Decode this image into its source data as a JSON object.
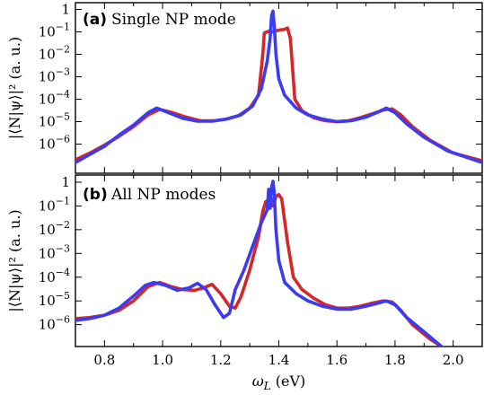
{
  "chart_data": [
    {
      "type": "line",
      "panel_tag": "(a)",
      "title": "Single NP mode",
      "ylabel": "|⟨N|ψ⟩|²  (a. u.)",
      "xlabel": "",
      "xlim": [
        0.7,
        2.1
      ],
      "ylim": [
        5e-08,
        2
      ],
      "yscale": "log",
      "yticks": [
        1,
        0.1,
        0.01,
        0.001,
        0.0001,
        1e-05,
        1e-06
      ],
      "yticklabels": [
        "1",
        "10^-1",
        "10^-2",
        "10^-3",
        "10^-4",
        "10^-5",
        "10^-6"
      ],
      "series": [
        {
          "color": "#d62728",
          "x": [
            0.7,
            0.75,
            0.8,
            0.85,
            0.9,
            0.95,
            0.99,
            1.03,
            1.08,
            1.13,
            1.18,
            1.22,
            1.26,
            1.3,
            1.33,
            1.345,
            1.35,
            1.36,
            1.37,
            1.38,
            1.39,
            1.4,
            1.42,
            1.43,
            1.44,
            1.455,
            1.48,
            1.52,
            1.56,
            1.6,
            1.64,
            1.68,
            1.72,
            1.76,
            1.79,
            1.82,
            1.86,
            1.92,
            2.0,
            2.1
          ],
          "y": [
            2e-07,
            4e-07,
            9e-07,
            2.2e-06,
            6e-06,
            2e-05,
            3.5e-05,
            2.6e-05,
            1.6e-05,
            1.1e-05,
            1.1e-05,
            1.3e-05,
            1.8e-05,
            4e-05,
            0.00015,
            0.01,
            0.09,
            0.1,
            0.11,
            0.1,
            0.11,
            0.12,
            0.13,
            0.15,
            0.05,
            0.0001,
            3e-05,
            1.5e-05,
            1.1e-05,
            1e-05,
            1.1e-05,
            1.5e-05,
            2.2e-05,
            3.3e-05,
            3.7e-05,
            2e-05,
            6e-06,
            1.5e-06,
            4e-07,
            1.8e-07
          ]
        },
        {
          "color": "#3b3bf0",
          "x": [
            0.7,
            0.75,
            0.8,
            0.85,
            0.9,
            0.95,
            0.98,
            1.02,
            1.07,
            1.12,
            1.17,
            1.22,
            1.27,
            1.31,
            1.34,
            1.36,
            1.37,
            1.375,
            1.38,
            1.385,
            1.39,
            1.4,
            1.42,
            1.46,
            1.5,
            1.55,
            1.6,
            1.65,
            1.7,
            1.74,
            1.77,
            1.8,
            1.84,
            1.9,
            1.98,
            2.1
          ],
          "y": [
            1.5e-07,
            3.5e-07,
            8e-07,
            2.5e-06,
            7e-06,
            2.5e-05,
            4e-05,
            2.5e-05,
            1.4e-05,
            1.05e-05,
            1.05e-05,
            1.3e-05,
            2e-05,
            5e-05,
            0.0003,
            0.005,
            0.05,
            0.5,
            0.85,
            0.15,
            0.01,
            0.0008,
            0.00015,
            4e-05,
            2e-05,
            1.3e-05,
            1e-05,
            1.1e-05,
            1.6e-05,
            2.6e-05,
            4e-05,
            2.5e-05,
            8e-06,
            2e-06,
            5e-07,
            1.5e-07
          ]
        }
      ]
    },
    {
      "type": "line",
      "panel_tag": "(b)",
      "title": "All NP modes",
      "ylabel": "|⟨N|ψ⟩|²  (a. u.)",
      "xlabel": "ω_L (eV)",
      "xlim": [
        0.7,
        2.1
      ],
      "ylim": [
        1.2e-07,
        2
      ],
      "yscale": "log",
      "xticks": [
        0.8,
        1.0,
        1.2,
        1.4,
        1.6,
        1.8,
        2.0
      ],
      "xticklabels": [
        "0.8",
        "1.0",
        "1.2",
        "1.4",
        "1.6",
        "1.8",
        "2.0"
      ],
      "yticks": [
        1,
        0.1,
        0.01,
        0.001,
        0.0001,
        1e-05,
        1e-06
      ],
      "yticklabels": [
        "1",
        "10^-1",
        "10^-2",
        "10^-3",
        "10^-4",
        "10^-5",
        "10^-6"
      ],
      "series": [
        {
          "color": "#d62728",
          "x": [
            0.7,
            0.75,
            0.8,
            0.85,
            0.9,
            0.95,
            0.99,
            1.03,
            1.07,
            1.11,
            1.14,
            1.17,
            1.2,
            1.23,
            1.25,
            1.27,
            1.3,
            1.33,
            1.345,
            1.355,
            1.365,
            1.375,
            1.38,
            1.39,
            1.4,
            1.41,
            1.43,
            1.45,
            1.48,
            1.52,
            1.56,
            1.6,
            1.64,
            1.68,
            1.72,
            1.76,
            1.79,
            1.82,
            1.86,
            1.92,
            1.97,
            2.1
          ],
          "y": [
            1.8e-06,
            2e-06,
            2.5e-06,
            4e-06,
            1e-05,
            4e-05,
            6e-05,
            4e-05,
            3e-05,
            2.8e-05,
            3.5e-05,
            5e-05,
            2e-05,
            6e-06,
            5e-06,
            1.5e-05,
            0.0002,
            0.005,
            0.06,
            0.15,
            0.18,
            0.2,
            0.1,
            0.25,
            0.3,
            0.2,
            0.003,
            0.0001,
            3e-05,
            1.3e-05,
            7e-06,
            5e-06,
            5e-06,
            6e-06,
            8e-06,
            1e-05,
            9e-06,
            4e-06,
            1e-06,
            2.5e-07,
            1e-07,
            1e-08
          ]
        },
        {
          "color": "#3b3bf0",
          "x": [
            0.7,
            0.75,
            0.8,
            0.85,
            0.9,
            0.94,
            0.97,
            1.01,
            1.05,
            1.09,
            1.12,
            1.15,
            1.18,
            1.21,
            1.23,
            1.25,
            1.28,
            1.31,
            1.34,
            1.36,
            1.365,
            1.37,
            1.375,
            1.38,
            1.385,
            1.39,
            1.4,
            1.42,
            1.46,
            1.5,
            1.55,
            1.6,
            1.65,
            1.7,
            1.74,
            1.77,
            1.8,
            1.84,
            1.9,
            1.96,
            2.1
          ],
          "y": [
            1.5e-06,
            1.8e-06,
            2.5e-06,
            5e-06,
            1.6e-05,
            4.5e-05,
            6e-05,
            4.5e-05,
            2.8e-05,
            3.5e-05,
            5.5e-05,
            3e-05,
            7e-06,
            2e-06,
            3e-06,
            3e-05,
            0.0002,
            0.002,
            0.02,
            0.07,
            0.5,
            0.08,
            0.6,
            1.1,
            0.3,
            0.01,
            0.0005,
            6e-05,
            2e-05,
            1e-05,
            6e-06,
            4.5e-06,
            4.5e-06,
            6e-06,
            8e-06,
            1e-05,
            7e-06,
            2e-06,
            5e-07,
            1.2e-07,
            1e-08
          ]
        }
      ]
    }
  ]
}
